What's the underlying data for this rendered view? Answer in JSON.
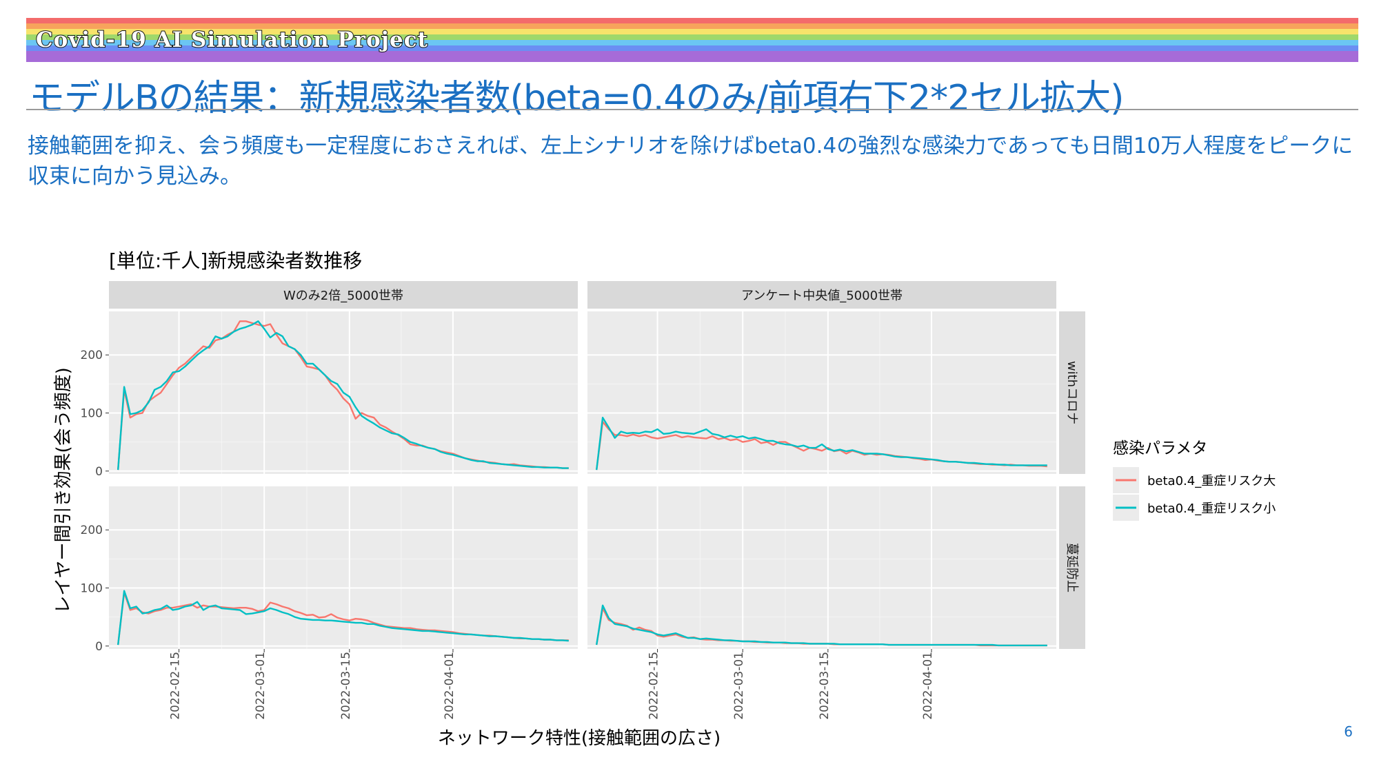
{
  "banner": {
    "text": "Covid-19 AI Simulation Project"
  },
  "slide": {
    "title": "モデルBの結果：新規感染者数(beta=0.4のみ/前項右下2*2セル拡大)",
    "description": "接触範囲を抑え、会う頻度も一定程度におさえれば、左上シナリオを除けばbeta0.4の強烈な感染力であっても日間10万人程度をピークに収束に向かう見込み。",
    "page_number": "6"
  },
  "colors": {
    "rainbow": [
      "#f36b6b",
      "#f7a35c",
      "#f7e36b",
      "#9fd86b",
      "#6bc6f3",
      "#6b8ef3",
      "#a66bd8"
    ],
    "series": [
      "#F8766D",
      "#00BFC4"
    ],
    "panel_bg": "#ebebeb",
    "strip_bg": "#d9d9d9",
    "accent": "#1a6fc2"
  },
  "chart_data": {
    "type": "line",
    "title": "[単位:千人]新規感染者数推移",
    "xlabel": "ネットワーク特性(接触範囲の広さ)",
    "ylabel": "レイヤー間引き効果(会う頻度)",
    "ylim": [
      -5,
      275
    ],
    "x_start": "2022-02-05",
    "x_ticks": [
      "2022-02-15",
      "2022-03-01",
      "2022-03-15",
      "2022-04-01"
    ],
    "y_ticks": [
      0,
      100,
      200
    ],
    "col_facets": [
      "Wのみ2倍_5000世帯",
      "アンケート中央値_5000世帯"
    ],
    "row_facets": [
      "withコロナ",
      "蔓延防止"
    ],
    "legend": {
      "title": "感染パラメタ",
      "position": "right"
    },
    "series_names": [
      "beta0.4_重症リスク大",
      "beta0.4_重症リスク小"
    ],
    "panels": [
      {
        "col": 0,
        "row": 0,
        "series": [
          {
            "name": "beta0.4_重症リスク大",
            "values": [
              2,
              140,
              92,
              98,
              100,
              120,
              128,
              135,
              150,
              165,
              178,
              185,
              195,
              205,
              215,
              212,
              225,
              228,
              235,
              240,
              258,
              258,
              255,
              252,
              250,
              253,
              235,
              220,
              215,
              210,
              196,
              180,
              178,
              175,
              165,
              150,
              140,
              125,
              115,
              90,
              100,
              95,
              92,
              80,
              75,
              68,
              62,
              55,
              46,
              44,
              44,
              40,
              38,
              34,
              32,
              30,
              26,
              22,
              20,
              18,
              16,
              15,
              14,
              12,
              11,
              12,
              10,
              9,
              8,
              7,
              7,
              6,
              6,
              5,
              5
            ]
          },
          {
            "name": "beta0.4_重症リスク小",
            "values": [
              2,
              145,
              98,
              100,
              105,
              118,
              140,
              145,
              155,
              170,
              172,
              180,
              190,
              200,
              208,
              215,
              232,
              228,
              232,
              240,
              245,
              248,
              252,
              258,
              245,
              230,
              238,
              232,
              215,
              210,
              200,
              185,
              185,
              175,
              165,
              155,
              150,
              135,
              128,
              110,
              95,
              88,
              82,
              75,
              70,
              65,
              63,
              57,
              50,
              47,
              43,
              40,
              38,
              33,
              30,
              28,
              25,
              22,
              19,
              17,
              17,
              14,
              13,
              12,
              11,
              10,
              9,
              8,
              7,
              7,
              6,
              6,
              6,
              5,
              5
            ]
          }
        ]
      },
      {
        "col": 1,
        "row": 0,
        "series": [
          {
            "name": "beta0.4_重症リスク大",
            "values": [
              2,
              85,
              72,
              62,
              62,
              60,
              63,
              60,
              62,
              58,
              56,
              58,
              60,
              62,
              58,
              60,
              58,
              57,
              56,
              60,
              55,
              57,
              53,
              55,
              50,
              52,
              55,
              48,
              50,
              45,
              50,
              50,
              45,
              40,
              35,
              40,
              38,
              35,
              40,
              34,
              36,
              30,
              35,
              32,
              28,
              30,
              28,
              29,
              28,
              26,
              25,
              24,
              22,
              21,
              19,
              20,
              18,
              17,
              16,
              16,
              15,
              14,
              13,
              12,
              12,
              11,
              11,
              10,
              11,
              10,
              10,
              9,
              9,
              9,
              8
            ]
          },
          {
            "name": "beta0.4_重症リスク小",
            "values": [
              2,
              92,
              75,
              57,
              68,
              65,
              66,
              65,
              68,
              67,
              72,
              64,
              65,
              68,
              66,
              65,
              64,
              68,
              72,
              64,
              62,
              58,
              61,
              58,
              60,
              56,
              58,
              55,
              52,
              52,
              48,
              46,
              45,
              42,
              44,
              40,
              40,
              46,
              38,
              35,
              37,
              34,
              36,
              33,
              30,
              30,
              30,
              29,
              27,
              25,
              24,
              24,
              23,
              22,
              21,
              20,
              19,
              17,
              16,
              16,
              15,
              14,
              14,
              13,
              12,
              12,
              11,
              11,
              10,
              10,
              10,
              10,
              10,
              10,
              10
            ]
          }
        ]
      },
      {
        "col": 0,
        "row": 1,
        "series": [
          {
            "name": "beta0.4_重症リスク大",
            "values": [
              2,
              92,
              62,
              65,
              58,
              56,
              60,
              62,
              66,
              66,
              68,
              70,
              72,
              66,
              70,
              68,
              68,
              67,
              66,
              65,
              66,
              66,
              64,
              60,
              62,
              75,
              72,
              68,
              65,
              60,
              57,
              53,
              54,
              49,
              50,
              55,
              49,
              46,
              44,
              47,
              46,
              44,
              40,
              37,
              34,
              33,
              32,
              31,
              31,
              29,
              28,
              27,
              27,
              26,
              25,
              24,
              22,
              21,
              20,
              19,
              18,
              18,
              17,
              16,
              15,
              14,
              13,
              13,
              12,
              12,
              11,
              11,
              10,
              10,
              10
            ]
          },
          {
            "name": "beta0.4_重症リスク小",
            "values": [
              2,
              95,
              65,
              68,
              56,
              58,
              62,
              64,
              70,
              62,
              64,
              68,
              70,
              76,
              62,
              68,
              70,
              65,
              64,
              63,
              62,
              55,
              56,
              58,
              60,
              65,
              62,
              58,
              55,
              50,
              47,
              46,
              45,
              45,
              44,
              44,
              43,
              42,
              41,
              40,
              40,
              38,
              38,
              35,
              33,
              31,
              30,
              29,
              28,
              27,
              26,
              26,
              25,
              24,
              23,
              22,
              21,
              20,
              20,
              19,
              18,
              17,
              17,
              16,
              15,
              14,
              14,
              13,
              12,
              12,
              11,
              11,
              10,
              10,
              9
            ]
          }
        ]
      },
      {
        "col": 1,
        "row": 1,
        "series": [
          {
            "name": "beta0.4_重症リスク大",
            "values": [
              2,
              65,
              45,
              40,
              38,
              35,
              28,
              32,
              28,
              26,
              18,
              16,
              18,
              20,
              16,
              14,
              15,
              12,
              11,
              11,
              10,
              10,
              9,
              9,
              8,
              8,
              7,
              7,
              6,
              6,
              6,
              5,
              5,
              5,
              4,
              4,
              4,
              4,
              4,
              3,
              3,
              3,
              3,
              3,
              3,
              3,
              3,
              3,
              2,
              2,
              2,
              2,
              2,
              2,
              2,
              2,
              2,
              2,
              2,
              2,
              2,
              2,
              2,
              1,
              1,
              1,
              1,
              1,
              1,
              1,
              1,
              1,
              1,
              1,
              1
            ]
          },
          {
            "name": "beta0.4_重症リスク小",
            "values": [
              2,
              70,
              48,
              38,
              36,
              34,
              30,
              28,
              26,
              24,
              20,
              18,
              20,
              22,
              18,
              14,
              14,
              12,
              13,
              12,
              11,
              10,
              10,
              9,
              8,
              8,
              8,
              7,
              7,
              6,
              6,
              6,
              5,
              5,
              5,
              4,
              4,
              4,
              4,
              4,
              3,
              3,
              3,
              3,
              3,
              3,
              3,
              3,
              2,
              2,
              2,
              2,
              2,
              2,
              2,
              2,
              2,
              2,
              2,
              2,
              2,
              2,
              2,
              2,
              2,
              2,
              1,
              1,
              1,
              1,
              1,
              1,
              1,
              1,
              1
            ]
          }
        ]
      }
    ]
  }
}
